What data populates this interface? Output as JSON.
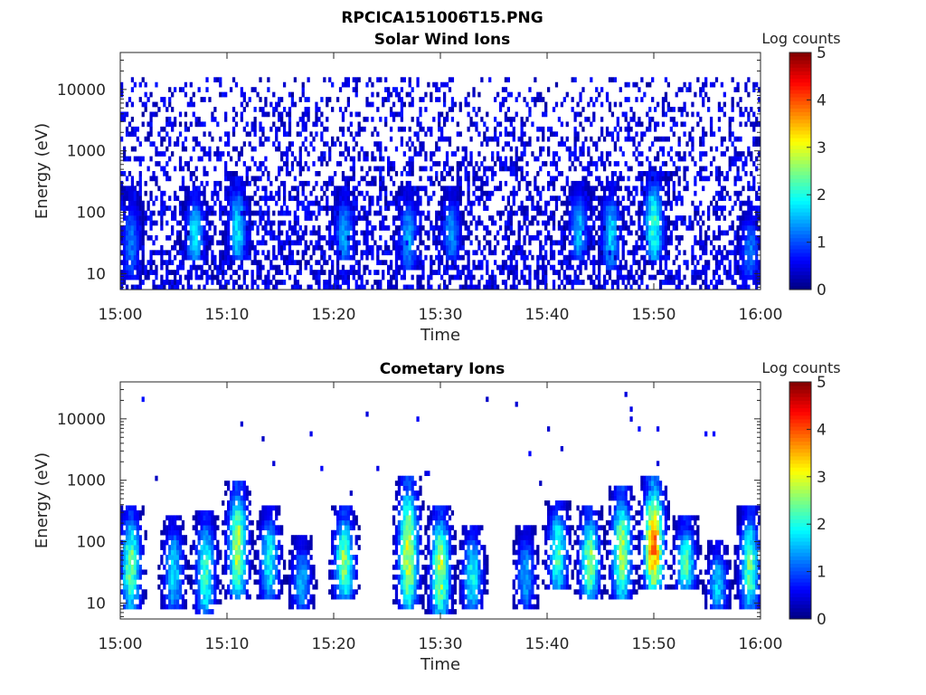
{
  "figure_title": "RPCICA151006T15.PNG",
  "colors": {
    "colormap": [
      "#00007f",
      "#0000ff",
      "#007fff",
      "#00ffff",
      "#7fff7f",
      "#ffff00",
      "#ff7f00",
      "#ff0000",
      "#7f0000"
    ],
    "axes": "#262626",
    "background": "#ffffff"
  },
  "chart_data": [
    {
      "type": "heatmap",
      "title": "Solar Wind Ions",
      "xlabel": "Time",
      "ylabel": "Energy (eV)",
      "x_ticks": [
        "15:00",
        "15:10",
        "15:20",
        "15:30",
        "15:40",
        "15:50",
        "16:00"
      ],
      "x_range": [
        "15:00",
        "16:00"
      ],
      "y_scale": "log",
      "y_ticks": [
        10,
        100,
        1000,
        10000
      ],
      "y_range": [
        5.5,
        40000
      ],
      "colorbar": {
        "label": "Log counts",
        "range": [
          0,
          5
        ],
        "ticks": [
          "0",
          "1",
          "2",
          "3",
          "4",
          "5"
        ]
      },
      "background_log_counts": 0.15,
      "background_energy_range_ev": [
        6,
        15000
      ],
      "enhancement_bursts": [
        {
          "time": "15:01",
          "energy_ev": [
            10,
            200
          ],
          "peak_log_counts": 1.2
        },
        {
          "time": "15:07",
          "energy_ev": [
            20,
            200
          ],
          "peak_log_counts": 1.8
        },
        {
          "time": "15:11",
          "energy_ev": [
            20,
            300
          ],
          "peak_log_counts": 1.8
        },
        {
          "time": "15:21",
          "energy_ev": [
            20,
            200
          ],
          "peak_log_counts": 1.5
        },
        {
          "time": "15:27",
          "energy_ev": [
            15,
            200
          ],
          "peak_log_counts": 1.5
        },
        {
          "time": "15:31",
          "energy_ev": [
            20,
            200
          ],
          "peak_log_counts": 1.4
        },
        {
          "time": "15:43",
          "energy_ev": [
            20,
            250
          ],
          "peak_log_counts": 1.6
        },
        {
          "time": "15:46",
          "energy_ev": [
            15,
            250
          ],
          "peak_log_counts": 1.7
        },
        {
          "time": "15:50",
          "energy_ev": [
            20,
            400
          ],
          "peak_log_counts": 2.2
        },
        {
          "time": "15:59",
          "energy_ev": [
            10,
            100
          ],
          "peak_log_counts": 1.3
        }
      ]
    },
    {
      "type": "heatmap",
      "title": "Cometary Ions",
      "xlabel": "Time",
      "ylabel": "Energy (eV)",
      "x_ticks": [
        "15:00",
        "15:10",
        "15:20",
        "15:30",
        "15:40",
        "15:50",
        "16:00"
      ],
      "x_range": [
        "15:00",
        "16:00"
      ],
      "y_scale": "log",
      "y_ticks": [
        10,
        100,
        1000,
        10000
      ],
      "y_range": [
        5.5,
        40000
      ],
      "colorbar": {
        "label": "Log counts",
        "range": [
          0,
          5
        ],
        "ticks": [
          "0",
          "1",
          "2",
          "3",
          "4",
          "5"
        ]
      },
      "background_log_counts": 0.0,
      "enhancement_bursts": [
        {
          "time": "15:01",
          "energy_ev": [
            10,
            300
          ],
          "peak_log_counts": 2.5
        },
        {
          "time": "15:05",
          "energy_ev": [
            10,
            200
          ],
          "peak_log_counts": 1.8
        },
        {
          "time": "15:08",
          "energy_ev": [
            8,
            250
          ],
          "peak_log_counts": 2.2
        },
        {
          "time": "15:11",
          "energy_ev": [
            15,
            800
          ],
          "peak_log_counts": 2.8
        },
        {
          "time": "15:14",
          "energy_ev": [
            15,
            300
          ],
          "peak_log_counts": 2.0
        },
        {
          "time": "15:17",
          "energy_ev": [
            10,
            100
          ],
          "peak_log_counts": 1.6
        },
        {
          "time": "15:21",
          "energy_ev": [
            15,
            300
          ],
          "peak_log_counts": 2.6
        },
        {
          "time": "15:27",
          "energy_ev": [
            10,
            900
          ],
          "peak_log_counts": 3.0
        },
        {
          "time": "15:30",
          "energy_ev": [
            8,
            300
          ],
          "peak_log_counts": 2.8
        },
        {
          "time": "15:33",
          "energy_ev": [
            10,
            150
          ],
          "peak_log_counts": 2.0
        },
        {
          "time": "15:38",
          "energy_ev": [
            10,
            150
          ],
          "peak_log_counts": 1.5
        },
        {
          "time": "15:41",
          "energy_ev": [
            20,
            400
          ],
          "peak_log_counts": 2.2
        },
        {
          "time": "15:44",
          "energy_ev": [
            15,
            300
          ],
          "peak_log_counts": 2.6
        },
        {
          "time": "15:47",
          "energy_ev": [
            15,
            600
          ],
          "peak_log_counts": 2.8
        },
        {
          "time": "15:50",
          "energy_ev": [
            20,
            900
          ],
          "peak_log_counts": 3.8
        },
        {
          "time": "15:53",
          "energy_ev": [
            20,
            200
          ],
          "peak_log_counts": 2.3
        },
        {
          "time": "15:56",
          "energy_ev": [
            10,
            80
          ],
          "peak_log_counts": 1.7
        },
        {
          "time": "15:59",
          "energy_ev": [
            10,
            300
          ],
          "peak_log_counts": 2.4
        }
      ]
    }
  ]
}
